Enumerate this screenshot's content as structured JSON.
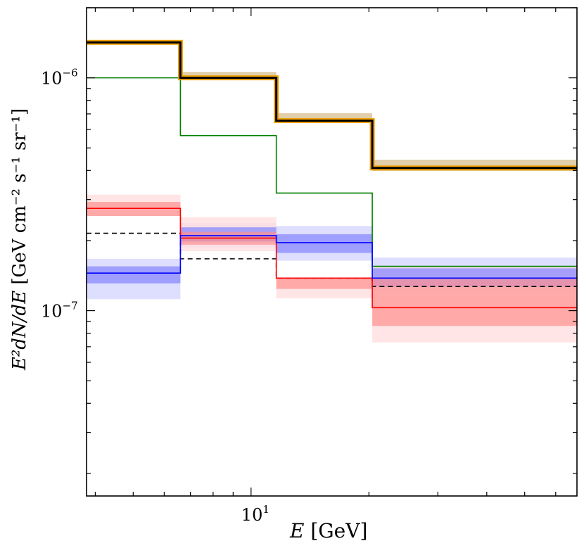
{
  "chart_data": {
    "type": "line",
    "subtype": "step-histogram",
    "xscale": "log",
    "yscale": "log",
    "xlim": [
      3.8,
      68
    ],
    "ylim": [
      1.6e-08,
      2e-06
    ],
    "xlabel_main": "E",
    "xlabel_unit": "[GeV]",
    "ylabel_main": "E²dN/dE",
    "ylabel_unit": "[GeV cm⁻² s⁻¹ sr⁻¹]",
    "x_ticks": [
      {
        "value": 10,
        "base": "10",
        "exp": "1"
      }
    ],
    "y_ticks": [
      {
        "value": 1e-06,
        "base": "10",
        "exp": "−6"
      },
      {
        "value": 1e-07,
        "base": "10",
        "exp": "−7"
      }
    ],
    "bin_edges": [
      3.8,
      6.6,
      11.6,
      20.4,
      68
    ],
    "series": [
      {
        "name": "total",
        "color": "#000000",
        "values": [
          1.42e-06,
          1e-06,
          6.55e-07,
          4.1e-07
        ],
        "band_color": "#c8a565",
        "band_low": [
          1.39e-06,
          9.8e-07,
          6.4e-07,
          3.98e-07
        ],
        "band_high": [
          1.44e-06,
          1.06e-06,
          7.05e-07,
          4.45e-07
        ],
        "highlight_color": "#f0a000"
      },
      {
        "name": "green",
        "color": "#008000",
        "values": [
          1e-06,
          5.65e-07,
          3.2e-07,
          1.55e-07
        ]
      },
      {
        "name": "dashed",
        "color": "#000000",
        "dashed": true,
        "values": [
          2.15e-07,
          1.67e-07,
          1.38e-07,
          1.27e-07
        ]
      },
      {
        "name": "blue",
        "color": "#0000ff",
        "values": [
          1.45e-07,
          2.1e-07,
          1.96e-07,
          1.38e-07
        ],
        "band1_color": "#8a8aff",
        "band1_low": [
          1.31e-07,
          1.98e-07,
          1.77e-07,
          1.27e-07
        ],
        "band1_high": [
          1.55e-07,
          2.28e-07,
          2.13e-07,
          1.52e-07
        ],
        "band2_color": "#d8d8ff",
        "band2_low": [
          1.12e-07,
          1.87e-07,
          1.64e-07,
          1.19e-07
        ],
        "band2_high": [
          1.67e-07,
          2.38e-07,
          2.31e-07,
          1.69e-07
        ]
      },
      {
        "name": "red",
        "color": "#ff0000",
        "values": [
          2.75e-07,
          2.05e-07,
          1.38e-07,
          1.03e-07
        ],
        "band1_color": "#ff9090",
        "band1_low": [
          2.55e-07,
          1.92e-07,
          1.24e-07,
          8.6e-08
        ],
        "band1_high": [
          2.93e-07,
          2.18e-07,
          1.38e-07,
          1.37e-07
        ],
        "band2_color": "#ffdede",
        "band2_low": [
          2.55e-07,
          1.8e-07,
          1.13e-07,
          7.3e-08
        ],
        "band2_high": [
          3.15e-07,
          2.52e-07,
          1.38e-07,
          1.55e-07
        ]
      }
    ]
  }
}
